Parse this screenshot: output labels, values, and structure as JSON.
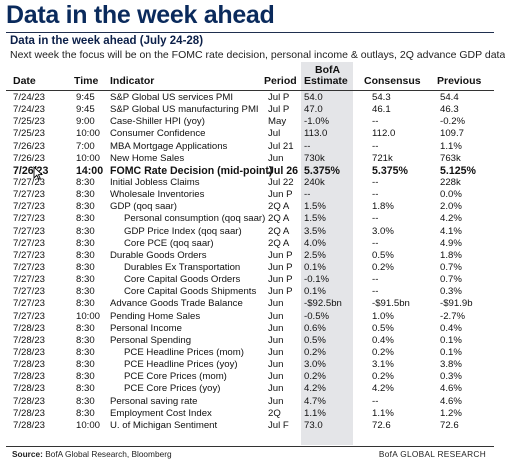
{
  "title": "Data in the week ahead",
  "subtitle": "Data in the week ahead (July 24-28)",
  "description": "Next week the focus will be on the FOMC rate decision, personal income & outlays, 2Q advance GDP data",
  "columns": {
    "date": "Date",
    "time": "Time",
    "indicator": "Indicator",
    "period": "Period",
    "bofa_line1": "BofA",
    "bofa_line2": "Estimate",
    "consensus": "Consensus",
    "previous": "Previous"
  },
  "rows": [
    {
      "date": "7/24/23",
      "time": "9:45",
      "indicator": "S&P Global US services PMI",
      "period": "Jul P",
      "bofa": "54.0",
      "consensus": "54.3",
      "previous": "54.4"
    },
    {
      "date": "7/24/23",
      "time": "9:45",
      "indicator": "S&P Global US manufacturing PMI",
      "period": "Jul P",
      "bofa": "47.0",
      "consensus": "46.1",
      "previous": "46.3"
    },
    {
      "date": "7/25/23",
      "time": "9:00",
      "indicator": "Case-Shiller HPI (yoy)",
      "period": "May",
      "bofa": "-1.0%",
      "consensus": "--",
      "previous": "-0.2%"
    },
    {
      "date": "7/25/23",
      "time": "10:00",
      "indicator": "Consumer Confidence",
      "period": "Jul",
      "bofa": "113.0",
      "consensus": "112.0",
      "previous": "109.7"
    },
    {
      "date": "7/26/23",
      "time": "7:00",
      "indicator": "MBA Mortgage Applications",
      "period": "Jul 21",
      "bofa": "--",
      "consensus": "--",
      "previous": "1.1%"
    },
    {
      "date": "7/26/23",
      "time": "10:00",
      "indicator": "New Home Sales",
      "period": "Jun",
      "bofa": "730k",
      "consensus": "721k",
      "previous": "763k"
    },
    {
      "date": "7/26/23",
      "time": "14:00",
      "indicator": "FOMC Rate Decision (mid-point)",
      "period": "Jul 26",
      "bofa": "5.375%",
      "consensus": "5.375%",
      "previous": "5.125%",
      "highlight": true
    },
    {
      "date": "7/27/23",
      "time": "8:30",
      "indicator": "Initial Jobless Claims",
      "period": "Jul 22",
      "bofa": "240k",
      "consensus": "--",
      "previous": "228k"
    },
    {
      "date": "7/27/23",
      "time": "8:30",
      "indicator": "Wholesale Inventories",
      "period": "Jun P",
      "bofa": "--",
      "consensus": "--",
      "previous": "0.0%"
    },
    {
      "date": "7/27/23",
      "time": "8:30",
      "indicator": "GDP (qoq saar)",
      "period": "2Q A",
      "bofa": "1.5%",
      "consensus": "1.8%",
      "previous": "2.0%"
    },
    {
      "date": "7/27/23",
      "time": "8:30",
      "indicator": "Personal consumption (qoq saar)",
      "period": "2Q A",
      "bofa": "1.5%",
      "consensus": "--",
      "previous": "4.2%",
      "indent": true
    },
    {
      "date": "7/27/23",
      "time": "8:30",
      "indicator": "GDP Price Index (qoq saar)",
      "period": "2Q A",
      "bofa": "3.5%",
      "consensus": "3.0%",
      "previous": "4.1%",
      "indent": true
    },
    {
      "date": "7/27/23",
      "time": "8:30",
      "indicator": "Core PCE (qoq saar)",
      "period": "2Q A",
      "bofa": "4.0%",
      "consensus": "--",
      "previous": "4.9%",
      "indent": true
    },
    {
      "date": "7/27/23",
      "time": "8:30",
      "indicator": "Durable Goods Orders",
      "period": "Jun P",
      "bofa": "2.5%",
      "consensus": "0.5%",
      "previous": "1.8%"
    },
    {
      "date": "7/27/23",
      "time": "8:30",
      "indicator": "Durables Ex Transportation",
      "period": "Jun P",
      "bofa": "0.1%",
      "consensus": "0.2%",
      "previous": "0.7%",
      "indent": true
    },
    {
      "date": "7/27/23",
      "time": "8:30",
      "indicator": "Core Capital Goods Orders",
      "period": "Jun P",
      "bofa": "-0.1%",
      "consensus": "--",
      "previous": "0.7%",
      "indent": true
    },
    {
      "date": "7/27/23",
      "time": "8:30",
      "indicator": "Core Capital Goods Shipments",
      "period": "Jun P",
      "bofa": "0.1%",
      "consensus": "--",
      "previous": "0.3%",
      "indent": true
    },
    {
      "date": "7/27/23",
      "time": "8:30",
      "indicator": "Advance Goods Trade Balance",
      "period": "Jun",
      "bofa": "-$92.5bn",
      "consensus": "-$91.5bn",
      "previous": "-$91.9b"
    },
    {
      "date": "7/27/23",
      "time": "10:00",
      "indicator": "Pending Home Sales",
      "period": "Jun",
      "bofa": "-0.5%",
      "consensus": "1.0%",
      "previous": "-2.7%"
    },
    {
      "date": "7/28/23",
      "time": "8:30",
      "indicator": "Personal Income",
      "period": "Jun",
      "bofa": "0.6%",
      "consensus": "0.5%",
      "previous": "0.4%"
    },
    {
      "date": "7/28/23",
      "time": "8:30",
      "indicator": "Personal Spending",
      "period": "Jun",
      "bofa": "0.5%",
      "consensus": "0.4%",
      "previous": "0.1%"
    },
    {
      "date": "7/28/23",
      "time": "8:30",
      "indicator": "PCE Headline Prices (mom)",
      "period": "Jun",
      "bofa": "0.2%",
      "consensus": "0.2%",
      "previous": "0.1%",
      "indent": true
    },
    {
      "date": "7/28/23",
      "time": "8:30",
      "indicator": "PCE Headline Prices (yoy)",
      "period": "Jun",
      "bofa": "3.0%",
      "consensus": "3.1%",
      "previous": "3.8%",
      "indent": true
    },
    {
      "date": "7/28/23",
      "time": "8:30",
      "indicator": "PCE Core Prices (mom)",
      "period": "Jun",
      "bofa": "0.2%",
      "consensus": "0.2%",
      "previous": "0.3%",
      "indent": true
    },
    {
      "date": "7/28/23",
      "time": "8:30",
      "indicator": "PCE Core Prices (yoy)",
      "period": "Jun",
      "bofa": "4.2%",
      "consensus": "4.2%",
      "previous": "4.6%",
      "indent": true
    },
    {
      "date": "7/28/23",
      "time": "8:30",
      "indicator": "Personal saving rate",
      "period": "Jun",
      "bofa": "4.7%",
      "consensus": "--",
      "previous": "4.6%"
    },
    {
      "date": "7/28/23",
      "time": "8:30",
      "indicator": "Employment Cost Index",
      "period": "2Q",
      "bofa": "1.1%",
      "consensus": "1.1%",
      "previous": "1.2%"
    },
    {
      "date": "7/28/23",
      "time": "10:00",
      "indicator": "U. of Michigan Sentiment",
      "period": "Jul F",
      "bofa": "73.0",
      "consensus": "72.6",
      "previous": "72.6"
    }
  ],
  "source": {
    "label": "Source:",
    "text": "BofA Global Research, Bloomberg"
  },
  "brand": "BofA GLOBAL RESEARCH",
  "colors": {
    "title": "#0a2a5c",
    "estimate_shade": "#e4e5e8"
  }
}
